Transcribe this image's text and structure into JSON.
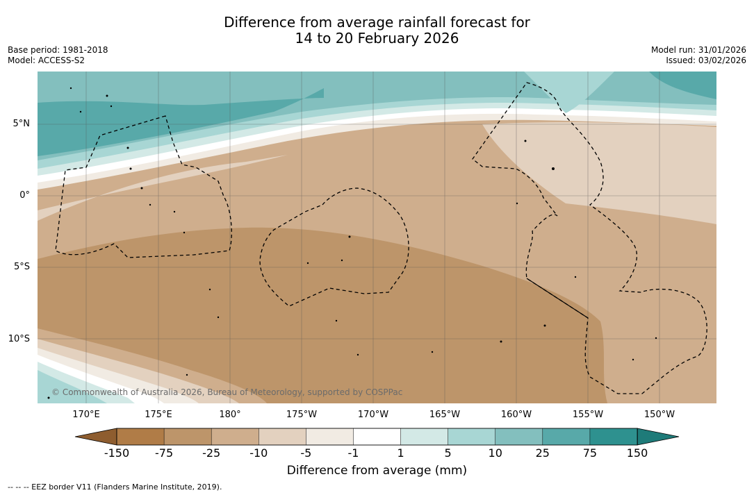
{
  "title_line1": "Difference from average rainfall forecast for",
  "title_line2": "14 to 20 February 2026",
  "meta_left": {
    "base_period": "Base period: 1981-2018",
    "model": "Model: ACCESS-S2"
  },
  "meta_right": {
    "model_run": "Model run: 31/01/2026",
    "issued": "Issued: 03/02/2026"
  },
  "copyright": "© Commonwealth of Australia 2026, Bureau of Meteorology, supported by COSPPac",
  "lat_labels": [
    "5°N",
    "0°",
    "5°S",
    "10°S"
  ],
  "lon_labels": [
    "170°E",
    "175°E",
    "180°",
    "175°W",
    "170°W",
    "165°W",
    "160°W",
    "155°W",
    "150°W"
  ],
  "colorbar": {
    "title": "Difference from average (mm)",
    "ticks": [
      "-150",
      "-75",
      "-25",
      "-10",
      "-5",
      "-1",
      "1",
      "5",
      "10",
      "25",
      "75",
      "150"
    ],
    "colors": [
      "#b07c47",
      "#bd956a",
      "#cfae8d",
      "#e3d1bf",
      "#f1ebe3",
      "#ffffff",
      "#d3e9e6",
      "#a8d6d4",
      "#83bfbe",
      "#58a9a9",
      "#2e918f"
    ],
    "extend_low": "#8e5d2f",
    "extend_high": "#1e7b79"
  },
  "palette": {
    "p150": "#2e918f",
    "p75": "#58a9a9",
    "p25": "#83bfbe",
    "p10": "#a8d6d4",
    "p5": "#d3e9e6",
    "n5": "#f1ebe3",
    "n10": "#e3d1bf",
    "n25": "#cfae8d",
    "n75": "#bd956a"
  },
  "footnote": "--  --  -- EEZ border V11 (Flanders Marine Institute, 2019)."
}
